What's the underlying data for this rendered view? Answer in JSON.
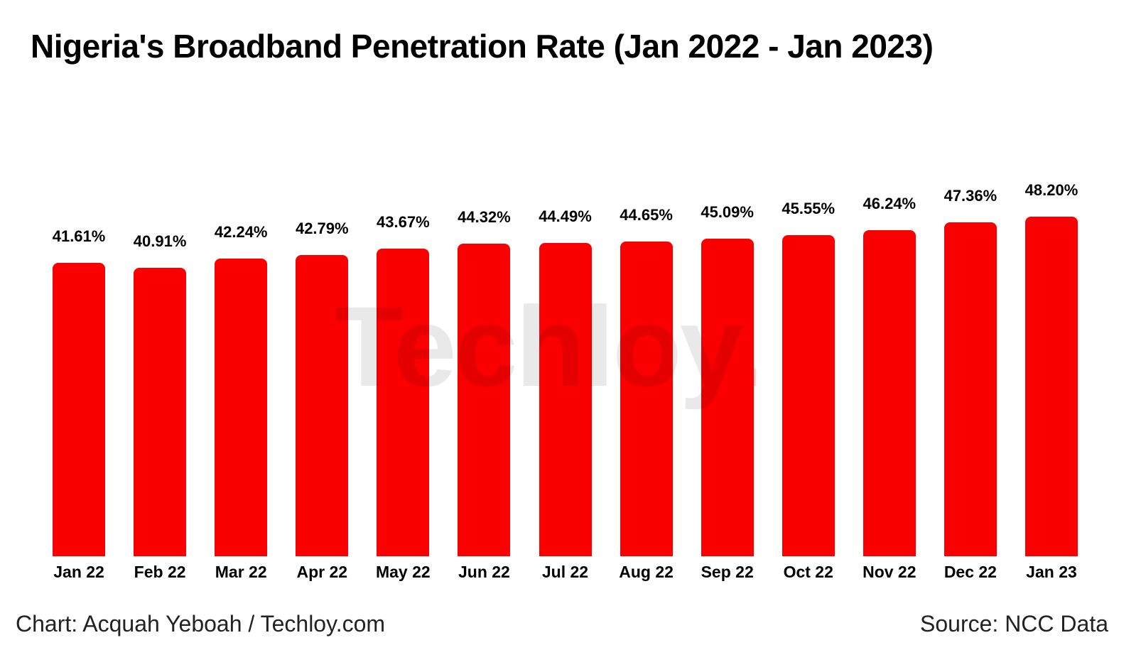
{
  "title": "Nigeria's Broadband Penetration Rate (Jan 2022 - Jan 2023)",
  "watermark": {
    "text": "Techloy",
    "dot": "."
  },
  "footer": {
    "credit": "Chart: Acquah Yeboah / Techloy.com",
    "source": "Source: NCC Data"
  },
  "colors": {
    "bar": "#fb0000",
    "title_text": "#000000",
    "footer_text": "#222222",
    "background": "#ffffff"
  },
  "chart_data": {
    "type": "bar",
    "title": "Nigeria's Broadband Penetration Rate (Jan 2022 - Jan 2023)",
    "categories": [
      "Jan 22",
      "Feb 22",
      "Mar 22",
      "Apr 22",
      "May 22",
      "Jun 22",
      "Jul 22",
      "Aug 22",
      "Sep 22",
      "Oct 22",
      "Nov 22",
      "Dec 22",
      "Jan 23"
    ],
    "values": [
      41.61,
      40.91,
      42.24,
      42.79,
      43.67,
      44.32,
      44.49,
      44.65,
      45.09,
      45.55,
      46.24,
      47.36,
      48.2
    ],
    "value_labels": [
      "41.61%",
      "40.91%",
      "42.24%",
      "42.79%",
      "43.67%",
      "44.32%",
      "44.49%",
      "44.65%",
      "45.09%",
      "45.55%",
      "46.24%",
      "47.36%",
      "48.20%"
    ],
    "xlabel": "",
    "ylabel": "",
    "ylim": [
      0,
      48.2
    ],
    "grid": false,
    "legend": false,
    "bar_color": "#fb0000",
    "data_label_position": "above-bars",
    "source": "Source: NCC Data",
    "credit": "Chart: Acquah Yeboah / Techloy.com"
  }
}
